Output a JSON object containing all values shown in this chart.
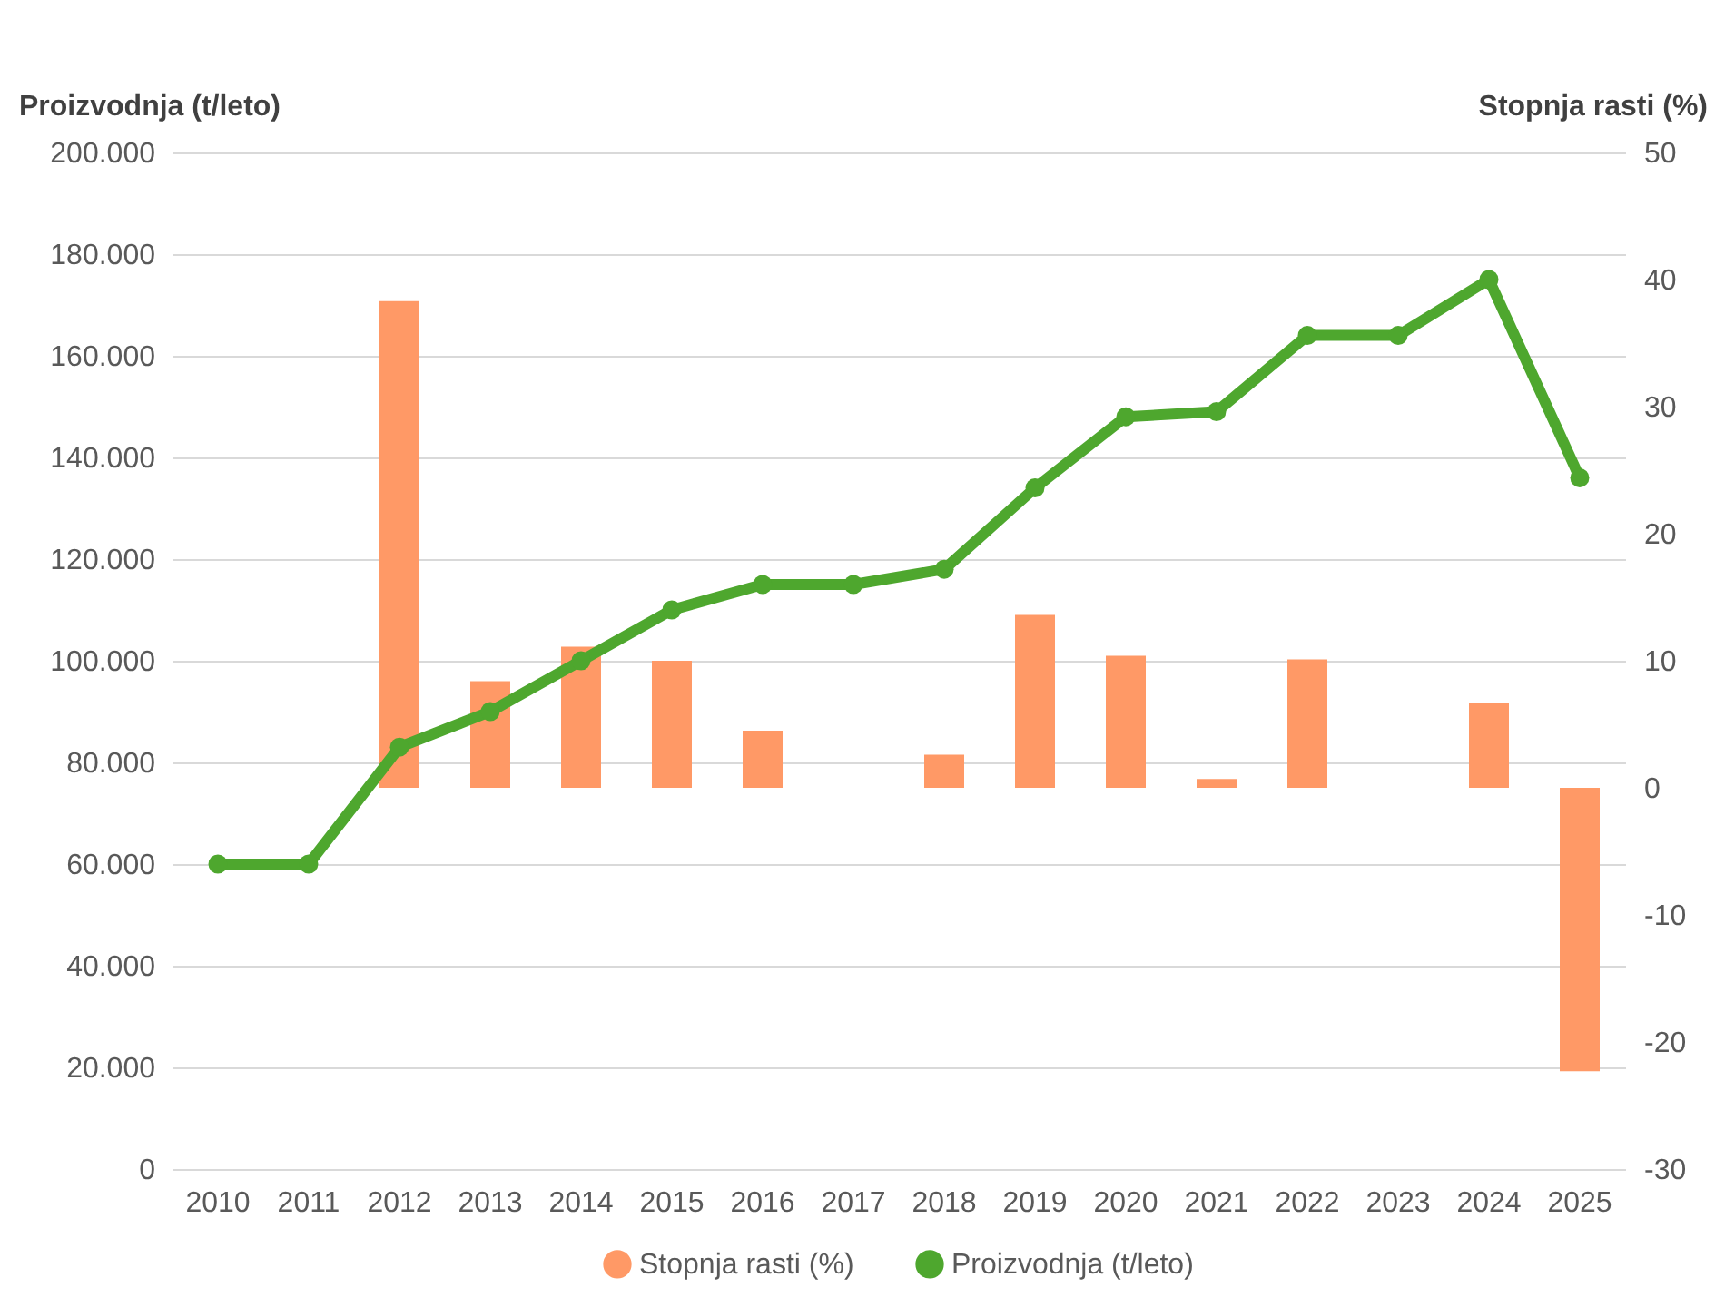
{
  "chart_data": {
    "type": "bar",
    "xlabel": null,
    "ylabel": "Proizvodnja (t/leto)",
    "y2label": "Stopnja rasti (%)",
    "categories": [
      "2010",
      "2011",
      "2012",
      "2013",
      "2014",
      "2015",
      "2016",
      "2017",
      "2018",
      "2019",
      "2020",
      "2021",
      "2022",
      "2023",
      "2024",
      "2025"
    ],
    "series": [
      {
        "name": "Stopnja rasti (%)",
        "axis": "y2",
        "color": "#ff9966",
        "values": [
          null,
          0,
          38.3,
          8.4,
          11.1,
          10,
          4.5,
          0,
          2.6,
          13.6,
          10.4,
          0.7,
          10.1,
          0,
          6.7,
          -22.3
        ]
      },
      {
        "name": "Proizvodnja (t/leto)",
        "type": "line",
        "color": "#4ea72e",
        "values": [
          60000,
          60000,
          83000,
          90000,
          100000,
          110000,
          115000,
          115000,
          118000,
          134000,
          148000,
          149000,
          164000,
          164000,
          175000,
          136000
        ]
      }
    ],
    "ylim": [
      0,
      200000
    ],
    "yticks": [
      0,
      {
        "value": 20000,
        "label": "20.000"
      },
      {
        "value": 40000,
        "label": "40.000"
      },
      {
        "value": 60000,
        "label": "60.000"
      },
      {
        "value": 80000,
        "label": "80.000"
      },
      {
        "value": 100000,
        "label": "100.000"
      },
      {
        "value": 120000,
        "label": "120.000"
      },
      {
        "value": 140000,
        "label": "140.000"
      },
      {
        "value": 160000,
        "label": "160.000"
      },
      {
        "value": 180000,
        "label": "180.000"
      },
      {
        "value": 200000,
        "label": "200.000"
      }
    ],
    "y2lim": [
      -30,
      50
    ],
    "y2ticks": [
      -30,
      -20,
      -10,
      0,
      10,
      20,
      30,
      40,
      50
    ],
    "grid": "y",
    "legend": "bottom",
    "marker": "circle",
    "line_style": "solid"
  }
}
